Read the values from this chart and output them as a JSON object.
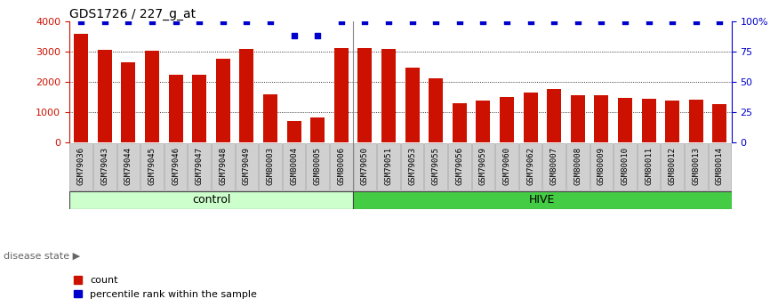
{
  "title": "GDS1726 / 227_g_at",
  "categories": [
    "GSM79036",
    "GSM79043",
    "GSM79044",
    "GSM79045",
    "GSM79046",
    "GSM79047",
    "GSM79048",
    "GSM79049",
    "GSM80003",
    "GSM80004",
    "GSM80005",
    "GSM80006",
    "GSM79050",
    "GSM79051",
    "GSM79053",
    "GSM79055",
    "GSM79056",
    "GSM79059",
    "GSM79060",
    "GSM79062",
    "GSM80007",
    "GSM80008",
    "GSM80009",
    "GSM80010",
    "GSM80011",
    "GSM80012",
    "GSM80013",
    "GSM80014"
  ],
  "counts": [
    3600,
    3050,
    2660,
    3030,
    2230,
    2250,
    2760,
    3090,
    1590,
    720,
    820,
    3110,
    3110,
    3080,
    2480,
    2110,
    1310,
    1380,
    1510,
    1640,
    1760,
    1580,
    1560,
    1490,
    1440,
    1380,
    1410,
    1280
  ],
  "percentile_adjusted": [
    100,
    100,
    100,
    100,
    100,
    100,
    100,
    100,
    100,
    88,
    88,
    100,
    100,
    100,
    100,
    100,
    100,
    100,
    100,
    100,
    100,
    100,
    100,
    100,
    100,
    100,
    100,
    100
  ],
  "group_labels": [
    "control",
    "HIVE"
  ],
  "group_split": 12,
  "bar_color": "#cc1100",
  "dot_color": "#0000cc",
  "control_bg": "#ccffcc",
  "hive_bg": "#44cc44",
  "ylim_left": [
    0,
    4000
  ],
  "ylim_right": [
    0,
    100
  ],
  "yticks_left": [
    0,
    1000,
    2000,
    3000,
    4000
  ],
  "ytick_labels_left": [
    "0",
    "1000",
    "2000",
    "3000",
    "4000"
  ],
  "yticks_right": [
    0,
    25,
    50,
    75,
    100
  ],
  "ytick_labels_right": [
    "0",
    "25",
    "50",
    "75",
    "100%"
  ],
  "disease_state_label": "disease state",
  "legend_count_label": "count",
  "legend_pct_label": "percentile rank within the sample",
  "xtick_bg": "#d0d0d0",
  "xtick_fontsize": 6.5,
  "title_fontsize": 10,
  "legend_fontsize": 8
}
